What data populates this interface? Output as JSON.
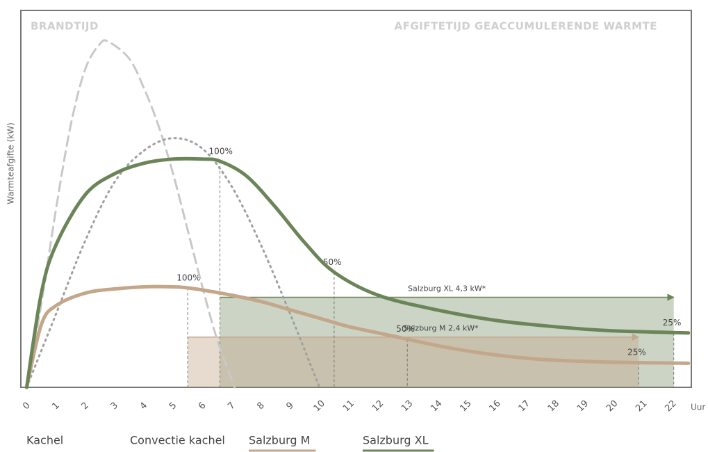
{
  "chart_data": {
    "type": "line",
    "headers": [
      "BRANDTIJD",
      "AFGIFTETIJD GEACCUMULERENDE WARMTE"
    ],
    "ylabel": "Warmteafgifte (kW)",
    "xlabel": "Uur",
    "xlim": [
      -0.2,
      22.7
    ],
    "ylim": [
      0,
      18
    ],
    "xticks": [
      0,
      1,
      2,
      3,
      4,
      5,
      6,
      7,
      8,
      9,
      10,
      11,
      12,
      13,
      14,
      15,
      16,
      17,
      18,
      19,
      20,
      21,
      22
    ],
    "grid": false,
    "series": [
      {
        "name": "Kachel",
        "color": "#c8c8c8",
        "style": "dashed",
        "x": [
          0,
          0.5,
          1,
          1.5,
          2,
          2.5,
          2.8,
          3.5,
          4,
          4.5,
          5,
          5.5,
          6,
          6.5,
          7.1
        ],
        "values": [
          0,
          4,
          8.5,
          12.5,
          15.2,
          16.4,
          16.5,
          15.7,
          14.3,
          12.5,
          10.2,
          7.5,
          4.8,
          2.3,
          0
        ]
      },
      {
        "name": "Convectie kachel",
        "color": "#a0a0a0",
        "style": "dotted",
        "x": [
          0,
          1,
          2,
          3,
          4,
          5,
          6,
          7,
          8,
          9,
          10
        ],
        "values": [
          0,
          3.5,
          7,
          9.8,
          11.3,
          11.9,
          11.4,
          9.6,
          6.8,
          3.5,
          0
        ]
      },
      {
        "name": "Salzburg M",
        "color": "#c4a68a",
        "style": "solid",
        "x": [
          0,
          0.5,
          1,
          2,
          3,
          4,
          5,
          5.5,
          6,
          7,
          8,
          9,
          10,
          11,
          12,
          13,
          14,
          15,
          16,
          17,
          18,
          20,
          22.6
        ],
        "values": [
          0,
          3,
          3.9,
          4.5,
          4.7,
          4.8,
          4.8,
          4.75,
          4.65,
          4.4,
          4.1,
          3.7,
          3.3,
          2.9,
          2.6,
          2.3,
          2.0,
          1.75,
          1.55,
          1.4,
          1.3,
          1.2,
          1.15
        ]
      },
      {
        "name": "Salzburg XL",
        "color": "#6b8559",
        "style": "solid",
        "x": [
          0,
          0.5,
          1,
          2,
          3,
          4,
          5,
          6,
          6.6,
          7.5,
          8.5,
          9.5,
          10.5,
          12,
          14,
          16,
          18,
          20,
          22.6
        ],
        "values": [
          0,
          4.5,
          6.8,
          9.2,
          10.2,
          10.7,
          10.9,
          10.9,
          10.8,
          10.1,
          8.6,
          6.9,
          5.5,
          4.4,
          3.7,
          3.2,
          2.9,
          2.7,
          2.6
        ]
      }
    ],
    "bands": [
      {
        "label": "Salzburg XL 4,3 kW*",
        "value": 4.3,
        "start": 6.6,
        "end": 22.1,
        "color": "#6b8559"
      },
      {
        "label": "Salzburg M 2,4 kW*",
        "value": 2.4,
        "start": 5.5,
        "end": 20.9,
        "color": "#c4a68a"
      }
    ],
    "markers": [
      {
        "label": "100%",
        "x": 6.6,
        "y": 10.8
      },
      {
        "label": "50%",
        "x": 10.5,
        "y": 5.5
      },
      {
        "label": "25%",
        "x": 22.1,
        "y": 2.6
      },
      {
        "label": "100%",
        "x": 5.5,
        "y": 4.75
      },
      {
        "label": "50%",
        "x": 13,
        "y": 2.3
      },
      {
        "label": "25%",
        "x": 20.9,
        "y": 1.2
      }
    ]
  }
}
